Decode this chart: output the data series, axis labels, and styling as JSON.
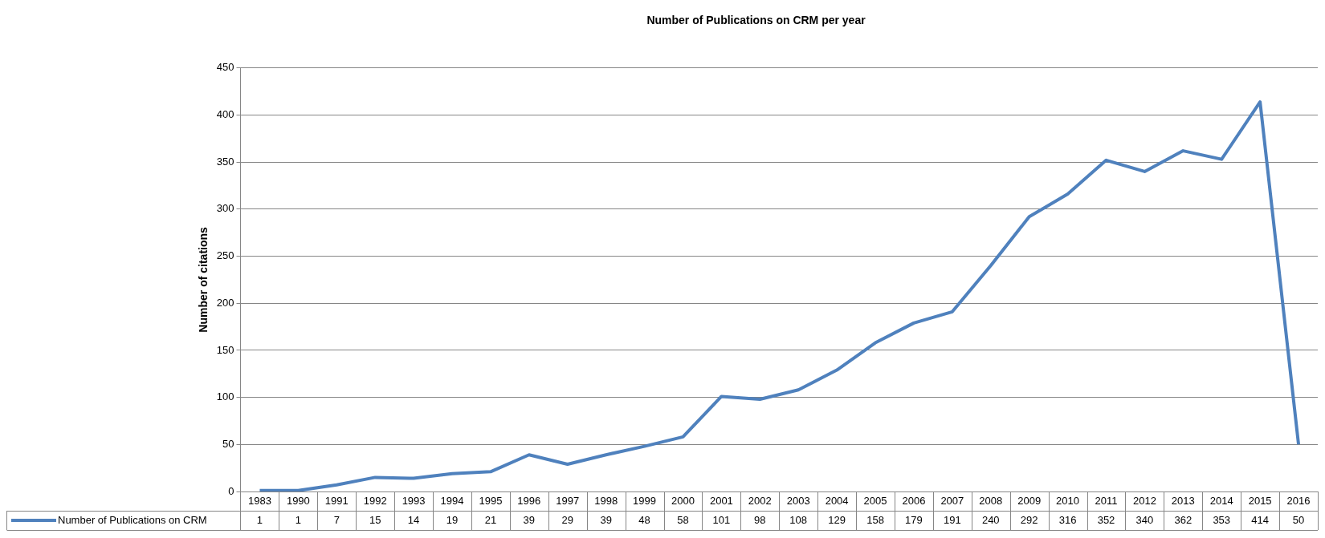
{
  "chart_data": {
    "type": "line",
    "title": "Number of Publications on CRM per year",
    "ylabel": "Number of citations",
    "categories": [
      "1983",
      "1990",
      "1991",
      "1992",
      "1993",
      "1994",
      "1995",
      "1996",
      "1997",
      "1998",
      "1999",
      "2000",
      "2001",
      "2002",
      "2003",
      "2004",
      "2005",
      "2006",
      "2007",
      "2008",
      "2009",
      "2010",
      "2011",
      "2012",
      "2013",
      "2014",
      "2015",
      "2016"
    ],
    "series": [
      {
        "name": "Number of Publications on CRM",
        "color": "#4f81bd",
        "values": [
          1,
          1,
          7,
          15,
          14,
          19,
          21,
          39,
          29,
          39,
          48,
          58,
          101,
          98,
          108,
          129,
          158,
          179,
          191,
          240,
          292,
          316,
          352,
          340,
          362,
          353,
          414,
          50
        ]
      }
    ],
    "ylim": [
      0,
      450
    ],
    "yticks": [
      0,
      50,
      100,
      150,
      200,
      250,
      300,
      350,
      400,
      450
    ],
    "grid": "y",
    "legend": "bottom",
    "data_labels": true
  }
}
